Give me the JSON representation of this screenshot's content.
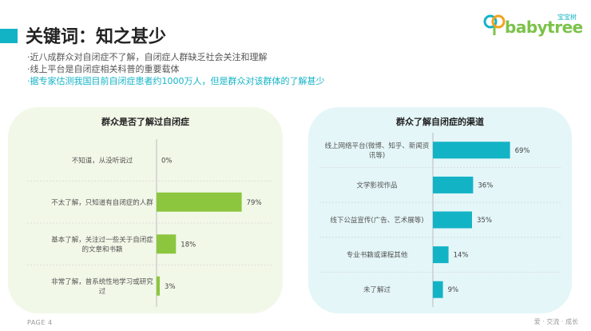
{
  "header": {
    "title": "关键词：知之甚少",
    "bullets": [
      "·近八成群众对自闭症不了解，自闭症人群缺乏社会关注和理解",
      "·线上平台是自闭症相关科普的重要载体",
      "·据专家估测我国目前自闭症患者约1000万人，但是群众对该群体的了解甚少"
    ]
  },
  "logo": {
    "word": "babytree",
    "sub": "宝宝树"
  },
  "colors": {
    "accent": "#13b3c6",
    "green": "#8cc63f",
    "teal": "#13b3c6"
  },
  "footer": {
    "page_label": "PAGE",
    "page_number": "4",
    "slogan": "爱 · 交流 · 成长"
  },
  "chart_data": [
    {
      "type": "bar",
      "orientation": "horizontal",
      "title": "群众是否了解过自闭症",
      "categories": [
        [
          "不知道，从没听说过"
        ],
        [
          "不太了解，只知道有自闭症的人群"
        ],
        [
          "基本了解，关注过一些关于自闭症",
          "的文章和书籍"
        ],
        [
          "非常了解，曾系统性地学习或研究",
          "过"
        ]
      ],
      "values": [
        0,
        79,
        18,
        3
      ],
      "value_labels": [
        "0%",
        "79%",
        "18%",
        "3%"
      ],
      "color": "#8cc63f",
      "xlim": [
        0,
        100
      ]
    },
    {
      "type": "bar",
      "orientation": "horizontal",
      "title": "群众了解自闭症的渠道",
      "categories": [
        [
          "线上网络平台(微博、知乎、新闻资",
          "讯等)"
        ],
        [
          "文学影视作品"
        ],
        [
          "线下公益宣传(广告、艺术展等)"
        ],
        [
          "专业书籍或课程其他"
        ],
        [
          "未了解过"
        ]
      ],
      "values": [
        69,
        36,
        35,
        14,
        9
      ],
      "value_labels": [
        "69%",
        "36%",
        "35%",
        "14%",
        "9%"
      ],
      "color": "#13b3c6",
      "xlim": [
        0,
        100
      ]
    }
  ]
}
